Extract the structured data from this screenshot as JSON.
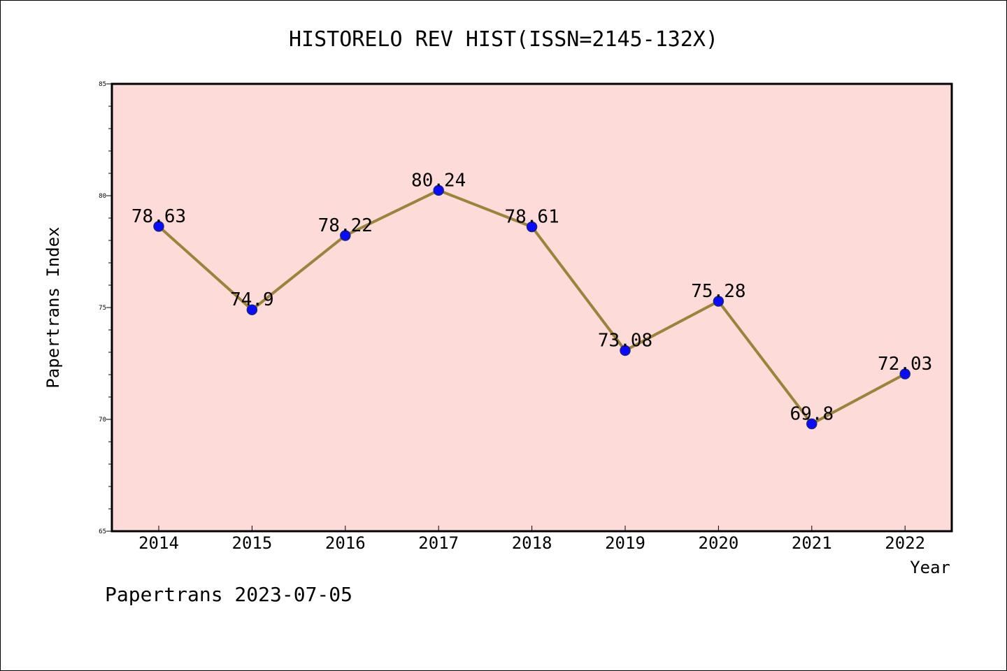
{
  "chart_data": {
    "type": "line",
    "title": "HISTORELO REV HIST(ISSN=2145-132X)",
    "xlabel": "Year",
    "ylabel": "Papertrans Index",
    "categories": [
      "2014",
      "2015",
      "2016",
      "2017",
      "2018",
      "2019",
      "2020",
      "2021",
      "2022"
    ],
    "values": [
      78.63,
      74.9,
      78.22,
      80.24,
      78.61,
      73.08,
      75.28,
      69.8,
      72.03
    ],
    "value_labels": [
      "78.63",
      "74.9",
      "78.22",
      "80.24",
      "78.61",
      "73.08",
      "75.28",
      "69.8",
      "72.03"
    ],
    "ylim": [
      65,
      85
    ],
    "yticks": [
      65,
      70,
      75,
      80,
      85
    ],
    "grid": false,
    "colors": {
      "plot_background": "#fddbd8",
      "line": "#9b843a",
      "marker": "#0a0aff",
      "marker_edge": "#1a237e"
    }
  },
  "footer": "Papertrans 2023-07-05"
}
